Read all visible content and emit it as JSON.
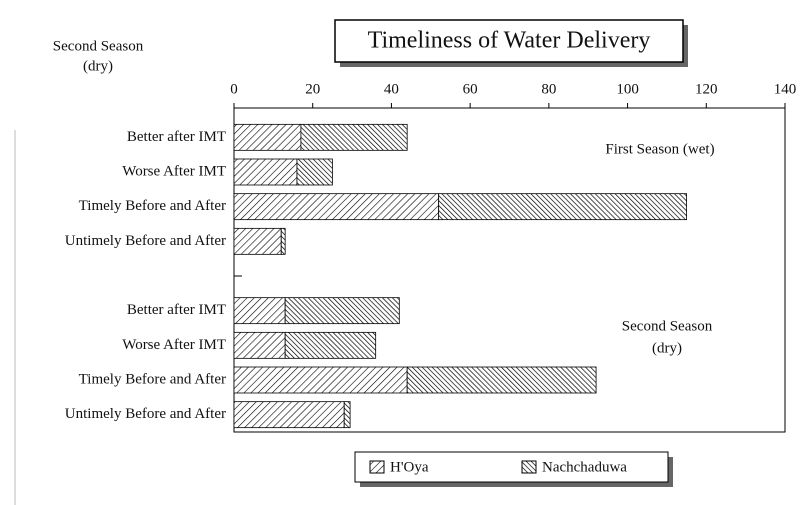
{
  "chart_data": {
    "type": "stacked-barh",
    "title": "Timeliness of Water Delivery",
    "side_label": [
      "Second Season",
      "(dry)"
    ],
    "annotations": [
      [
        "First Season (wet)"
      ],
      [
        "Second Season",
        "(dry)"
      ]
    ],
    "categories": [
      "Better after IMT",
      "Worse After IMT",
      "Timely Before and After",
      "Untimely Before and After",
      null,
      "Better after IMT",
      "Worse After IMT",
      "Timely Before and After",
      "Untimely Before and After"
    ],
    "series": [
      {
        "name": "H'Oya",
        "color": "#000000",
        "values": [
          17,
          16,
          52,
          12,
          null,
          13,
          13,
          44,
          28
        ]
      },
      {
        "name": "Nachchaduwa",
        "color": "#000000",
        "values": [
          27,
          9,
          63,
          1,
          null,
          29,
          23,
          48,
          1.5
        ]
      }
    ],
    "xlim": [
      0,
      140
    ],
    "xticks": [
      0,
      20,
      40,
      60,
      80,
      100,
      120,
      140
    ]
  }
}
